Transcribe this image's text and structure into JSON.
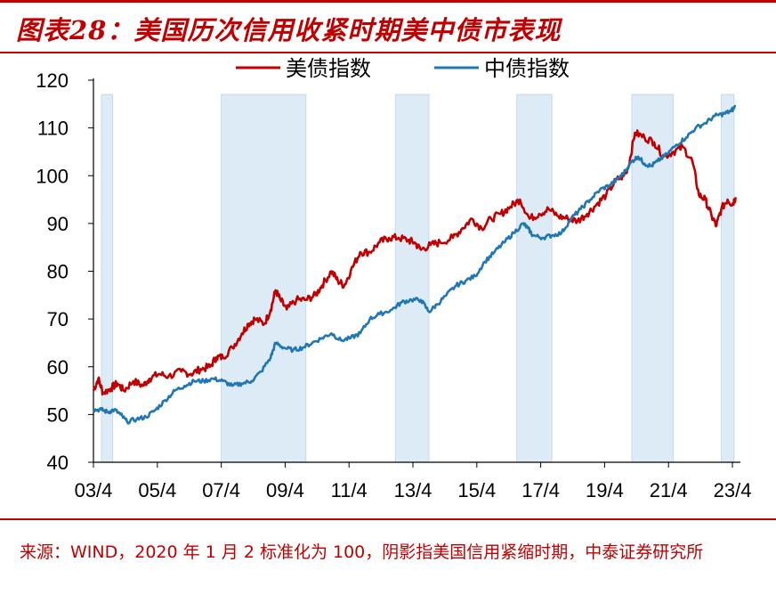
{
  "title": "图表28：美国历次信用收紧时期美中债市表现",
  "source_note": "来源：WIND，2020 年 1 月 2 标准化为 100，阴影指美国信用紧缩时期，中泰证券研究所",
  "colors": {
    "us": "#c00000",
    "cn": "#1f77b4",
    "shade": "#ddebf7",
    "shade_border": "#c5dbef"
  },
  "chart_data": {
    "type": "line",
    "x_range": [
      2003.25,
      2023.5
    ],
    "ylim": [
      40,
      120
    ],
    "yticks": [
      40,
      50,
      60,
      70,
      80,
      90,
      100,
      110,
      120
    ],
    "xticks": [
      {
        "label": "03/4",
        "x": 2003.25
      },
      {
        "label": "05/4",
        "x": 2005.25
      },
      {
        "label": "07/4",
        "x": 2007.25
      },
      {
        "label": "09/4",
        "x": 2009.25
      },
      {
        "label": "11/4",
        "x": 2011.25
      },
      {
        "label": "13/4",
        "x": 2013.25
      },
      {
        "label": "15/4",
        "x": 2015.25
      },
      {
        "label": "17/4",
        "x": 2017.25
      },
      {
        "label": "19/4",
        "x": 2019.25
      },
      {
        "label": "21/4",
        "x": 2021.25
      },
      {
        "label": "23/4",
        "x": 2023.25
      }
    ],
    "legend_placement": "top",
    "shaded_periods": [
      [
        2003.5,
        2003.85
      ],
      [
        2007.25,
        2009.9
      ],
      [
        2012.7,
        2013.75
      ],
      [
        2016.5,
        2017.6
      ],
      [
        2020.1,
        2021.4
      ],
      [
        2022.9,
        2023.3
      ]
    ],
    "series": [
      {
        "name": "美债指数",
        "key": "us",
        "points": [
          [
            2003.25,
            55
          ],
          [
            2003.4,
            57.5
          ],
          [
            2003.55,
            54.5
          ],
          [
            2003.8,
            55.5
          ],
          [
            2004.0,
            56.5
          ],
          [
            2004.2,
            55.0
          ],
          [
            2004.5,
            57
          ],
          [
            2004.8,
            56
          ],
          [
            2005.0,
            57.5
          ],
          [
            2005.3,
            58.5
          ],
          [
            2005.6,
            58
          ],
          [
            2006.0,
            59
          ],
          [
            2006.3,
            58.5
          ],
          [
            2006.6,
            59.5
          ],
          [
            2006.9,
            60
          ],
          [
            2007.1,
            62
          ],
          [
            2007.3,
            62
          ],
          [
            2007.6,
            64
          ],
          [
            2007.9,
            67
          ],
          [
            2008.1,
            69
          ],
          [
            2008.3,
            70
          ],
          [
            2008.6,
            69
          ],
          [
            2008.8,
            72
          ],
          [
            2008.95,
            76
          ],
          [
            2009.1,
            74
          ],
          [
            2009.3,
            72
          ],
          [
            2009.6,
            74
          ],
          [
            2009.9,
            74
          ],
          [
            2010.2,
            75
          ],
          [
            2010.4,
            77
          ],
          [
            2010.7,
            80
          ],
          [
            2010.9,
            78
          ],
          [
            2011.1,
            77
          ],
          [
            2011.3,
            80
          ],
          [
            2011.6,
            84
          ],
          [
            2011.9,
            84
          ],
          [
            2012.2,
            86
          ],
          [
            2012.5,
            87
          ],
          [
            2012.8,
            87
          ],
          [
            2013.1,
            86.5
          ],
          [
            2013.3,
            86
          ],
          [
            2013.5,
            84.5
          ],
          [
            2013.8,
            85.5
          ],
          [
            2014.1,
            86
          ],
          [
            2014.5,
            87
          ],
          [
            2014.8,
            89
          ],
          [
            2015.1,
            91
          ],
          [
            2015.4,
            89
          ],
          [
            2015.7,
            91
          ],
          [
            2016.0,
            92
          ],
          [
            2016.3,
            93.5
          ],
          [
            2016.6,
            95
          ],
          [
            2016.9,
            91
          ],
          [
            2017.2,
            92
          ],
          [
            2017.5,
            93
          ],
          [
            2017.8,
            91.5
          ],
          [
            2018.1,
            91
          ],
          [
            2018.4,
            90.5
          ],
          [
            2018.7,
            92
          ],
          [
            2019.0,
            94
          ],
          [
            2019.3,
            96
          ],
          [
            2019.6,
            99
          ],
          [
            2019.85,
            100
          ],
          [
            2020.0,
            102
          ],
          [
            2020.2,
            109
          ],
          [
            2020.5,
            108
          ],
          [
            2020.8,
            107
          ],
          [
            2021.1,
            104
          ],
          [
            2021.4,
            105
          ],
          [
            2021.7,
            106
          ],
          [
            2022.0,
            103
          ],
          [
            2022.2,
            96
          ],
          [
            2022.4,
            95
          ],
          [
            2022.6,
            91.5
          ],
          [
            2022.75,
            89.5
          ],
          [
            2022.9,
            93
          ],
          [
            2023.1,
            95
          ],
          [
            2023.25,
            94
          ],
          [
            2023.35,
            95.5
          ]
        ]
      },
      {
        "name": "中债指数",
        "key": "cn",
        "points": [
          [
            2003.25,
            51
          ],
          [
            2003.5,
            51
          ],
          [
            2003.7,
            50.5
          ],
          [
            2003.9,
            51
          ],
          [
            2004.1,
            50
          ],
          [
            2004.3,
            48.5
          ],
          [
            2004.6,
            49
          ],
          [
            2004.9,
            49.5
          ],
          [
            2005.2,
            51
          ],
          [
            2005.5,
            53
          ],
          [
            2005.8,
            55
          ],
          [
            2006.1,
            56
          ],
          [
            2006.4,
            57
          ],
          [
            2006.7,
            57
          ],
          [
            2007.0,
            57.5
          ],
          [
            2007.3,
            57
          ],
          [
            2007.6,
            56
          ],
          [
            2007.9,
            56.5
          ],
          [
            2008.2,
            57
          ],
          [
            2008.5,
            59
          ],
          [
            2008.8,
            62
          ],
          [
            2008.95,
            65
          ],
          [
            2009.2,
            64
          ],
          [
            2009.5,
            63.5
          ],
          [
            2009.8,
            64
          ],
          [
            2010.1,
            65
          ],
          [
            2010.4,
            66
          ],
          [
            2010.7,
            67
          ],
          [
            2011.0,
            65.5
          ],
          [
            2011.3,
            66
          ],
          [
            2011.6,
            67
          ],
          [
            2011.9,
            70
          ],
          [
            2012.2,
            71
          ],
          [
            2012.6,
            72
          ],
          [
            2012.9,
            73.5
          ],
          [
            2013.2,
            74
          ],
          [
            2013.5,
            74
          ],
          [
            2013.75,
            71.5
          ],
          [
            2014.0,
            73
          ],
          [
            2014.3,
            75
          ],
          [
            2014.6,
            77
          ],
          [
            2014.9,
            78
          ],
          [
            2015.2,
            79
          ],
          [
            2015.5,
            82
          ],
          [
            2015.8,
            84
          ],
          [
            2016.1,
            86
          ],
          [
            2016.4,
            88
          ],
          [
            2016.7,
            90
          ],
          [
            2016.85,
            89
          ],
          [
            2017.0,
            87.5
          ],
          [
            2017.3,
            87
          ],
          [
            2017.6,
            87.5
          ],
          [
            2017.9,
            88
          ],
          [
            2018.2,
            91
          ],
          [
            2018.5,
            93
          ],
          [
            2018.8,
            95
          ],
          [
            2019.1,
            97
          ],
          [
            2019.4,
            98
          ],
          [
            2019.7,
            99.5
          ],
          [
            2019.9,
            101
          ],
          [
            2020.1,
            103
          ],
          [
            2020.3,
            104
          ],
          [
            2020.5,
            102.5
          ],
          [
            2020.7,
            102
          ],
          [
            2020.9,
            103
          ],
          [
            2021.2,
            104.5
          ],
          [
            2021.5,
            106.5
          ],
          [
            2021.8,
            108
          ],
          [
            2022.1,
            110
          ],
          [
            2022.4,
            111
          ],
          [
            2022.7,
            112.5
          ],
          [
            2023.0,
            113
          ],
          [
            2023.2,
            113.5
          ],
          [
            2023.35,
            114.5
          ]
        ]
      }
    ]
  }
}
